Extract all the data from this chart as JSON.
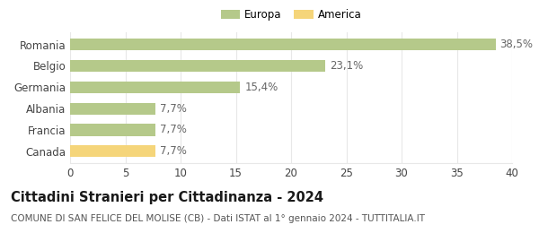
{
  "categories": [
    "Canada",
    "Francia",
    "Albania",
    "Germania",
    "Belgio",
    "Romania"
  ],
  "values": [
    7.7,
    7.7,
    7.7,
    15.4,
    23.1,
    38.5
  ],
  "labels": [
    "7,7%",
    "7,7%",
    "7,7%",
    "15,4%",
    "23,1%",
    "38,5%"
  ],
  "colors": [
    "#f5d57a",
    "#b5c98a",
    "#b5c98a",
    "#b5c98a",
    "#b5c98a",
    "#b5c98a"
  ],
  "legend": [
    {
      "label": "Europa",
      "color": "#b5c98a"
    },
    {
      "label": "America",
      "color": "#f5d57a"
    }
  ],
  "xlim": [
    0,
    40
  ],
  "xticks": [
    0,
    5,
    10,
    15,
    20,
    25,
    30,
    35,
    40
  ],
  "title_bold": "Cittadini Stranieri per Cittadinanza - 2024",
  "subtitle": "COMUNE DI SAN FELICE DEL MOLISE (CB) - Dati ISTAT al 1° gennaio 2024 - TUTTITALIA.IT",
  "bg_color": "#ffffff",
  "grid_color": "#e8e8e8",
  "bar_height": 0.55,
  "label_fontsize": 8.5,
  "tick_fontsize": 8.5,
  "ytick_fontsize": 8.5,
  "title_fontsize": 10.5,
  "subtitle_fontsize": 7.5
}
